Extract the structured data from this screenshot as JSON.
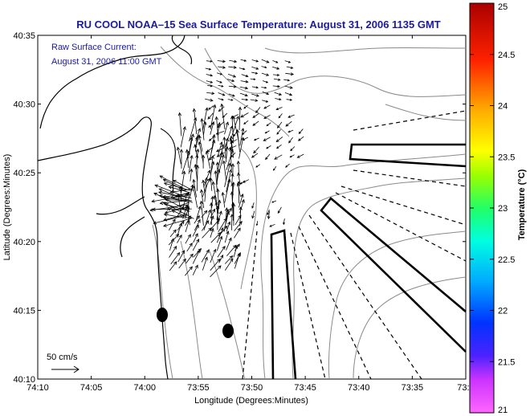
{
  "title": "RU COOL  NOAA–15  Sea Surface Temperature:  August 31, 2006 1135 GMT",
  "annotation": {
    "line1": "Raw Surface Current:",
    "line2": "August 31, 2006 11:00 GMT"
  },
  "scale_label": "50 cm/s",
  "x_axis": {
    "label": "Longitude (Degrees:Minutes)",
    "ticks": [
      "74:10",
      "74:05",
      "74:00",
      "73:55",
      "73:50",
      "73:45",
      "73:40",
      "73:35",
      "73:3"
    ]
  },
  "y_axis": {
    "label": "Latitude (Degrees:Minutes)",
    "ticks": [
      "40:35",
      "40:30",
      "40:25",
      "40:20",
      "40:15",
      "40:10"
    ]
  },
  "colorbar": {
    "label": "Temperature (°C)",
    "min": 21,
    "max": 25,
    "ticks": [
      "25",
      "24.5",
      "24",
      "23.5",
      "23",
      "22.5",
      "22",
      "21.5",
      "21"
    ]
  },
  "colors": {
    "title": "#1a1aa0",
    "coast": "#000000",
    "bathymetry": "#888888",
    "vectors": "#000000"
  }
}
